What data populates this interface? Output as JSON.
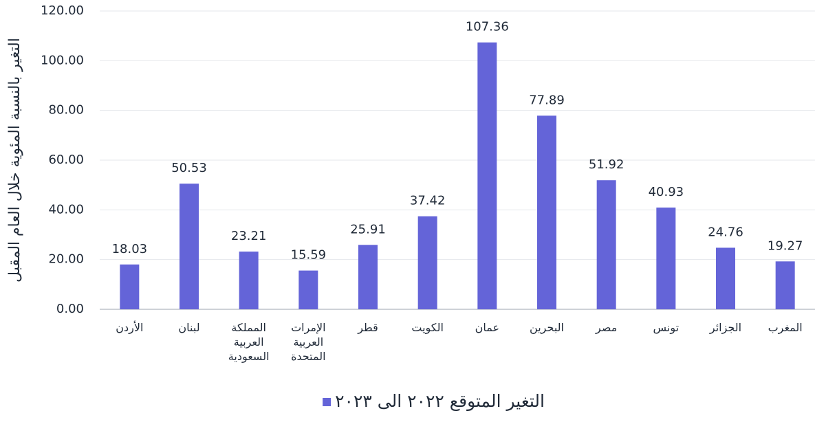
{
  "chart_data": {
    "type": "bar",
    "categories": [
      "الأردن",
      "لبنان",
      "المملكة العربية السعودية",
      "الإمرات العربية المتحدة",
      "قطر",
      "الكويت",
      "عمان",
      "البحرين",
      "مصر",
      "تونس",
      "الجزائر",
      "المغرب"
    ],
    "series": [
      {
        "name": "التغير المتوقع ٢٠٢٢ الى ٢٠٢٣",
        "color": "#6464d8",
        "values": [
          18.03,
          50.53,
          23.21,
          15.59,
          25.91,
          37.42,
          107.36,
          77.89,
          51.92,
          40.93,
          24.76,
          19.27
        ]
      }
    ],
    "ylabel": "التغير بالنسبة المئوية خلال العام المقبل",
    "ylim": [
      0,
      120
    ],
    "yticks": [
      {
        "value": 0,
        "label": "0.00"
      },
      {
        "value": 20,
        "label": "20.00"
      },
      {
        "value": 40,
        "label": "40.00"
      },
      {
        "value": 60,
        "label": "60.00"
      },
      {
        "value": 80,
        "label": "80.00"
      },
      {
        "value": 100,
        "label": "100.00"
      },
      {
        "value": 120,
        "label": "120.00"
      }
    ],
    "grid": true,
    "legend": "bottom"
  }
}
